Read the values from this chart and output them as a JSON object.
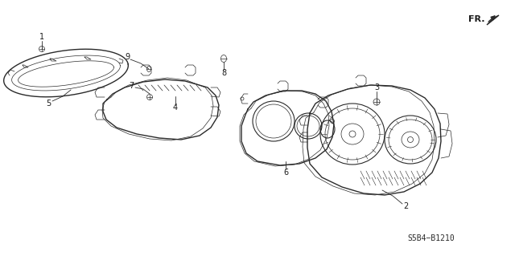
{
  "bg_color": "#ffffff",
  "line_color": "#2a2a2a",
  "label_color": "#1a1a1a",
  "diagram_code": "S5B4−B1210",
  "fr_label": "FR.",
  "lw_main": 0.8,
  "lw_thin": 0.5,
  "lw_thick": 1.0
}
